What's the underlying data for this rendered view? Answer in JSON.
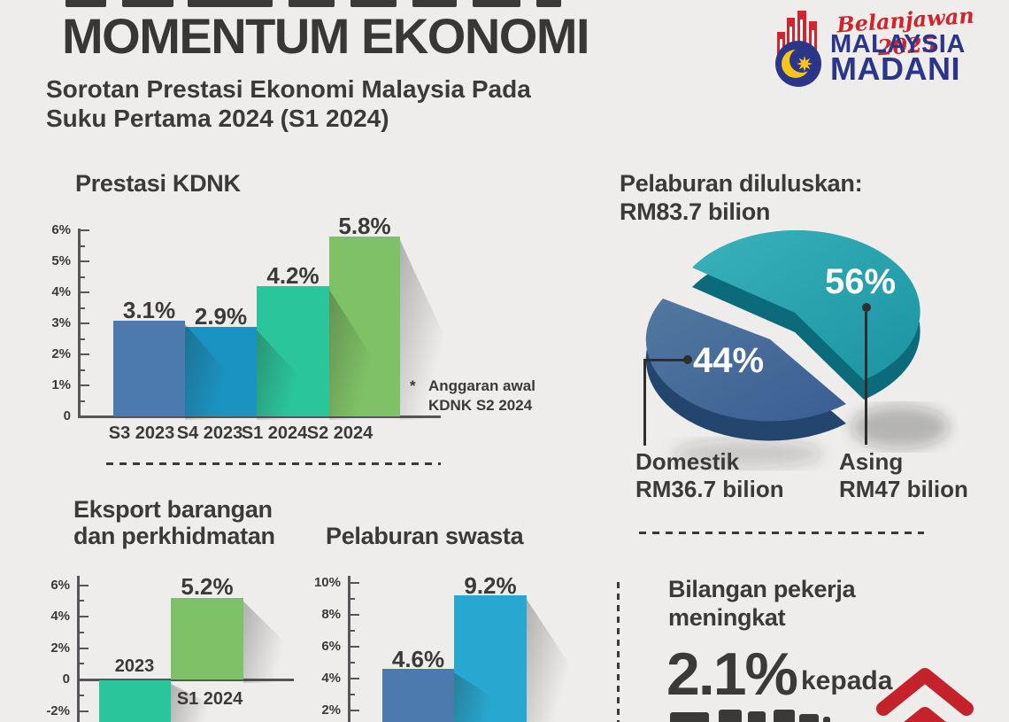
{
  "header": {
    "title": "MOMENTUM EKONOMI",
    "subtitle1": "Sorotan Prestasi Ekonomi Malaysia Pada",
    "subtitle2": "Suku Pertama 2024 (S1 2024)"
  },
  "logo": {
    "script": "Belanjawan 2025",
    "line1": "MALAYSIA",
    "line2": "MADANI",
    "script_color": "#d0242c",
    "navy": "#2b3589",
    "yellow": "#f6c51c",
    "red": "#cf2630"
  },
  "colors": {
    "background": "#eeedec",
    "text": "#3b3a39",
    "axis": "#55565a",
    "accent_red": "#c5232b"
  },
  "chart_data": [
    {
      "type": "bar",
      "title": "Prestasi KDNK",
      "categories": [
        "S3 2023",
        "S4 2023",
        "S1 2024",
        "S2 2024"
      ],
      "values": [
        3.1,
        2.9,
        4.2,
        5.8
      ],
      "value_labels": [
        "3.1%",
        "2.9%",
        "4.2%",
        "5.8%"
      ],
      "unit": "%",
      "ylim": [
        0,
        6
      ],
      "yticks": [
        {
          "v": 6,
          "l": "6%"
        },
        {
          "v": 5,
          "l": "5%"
        },
        {
          "v": 4,
          "l": "4%"
        },
        {
          "v": 3,
          "l": "3%"
        },
        {
          "v": 2,
          "l": "2%"
        },
        {
          "v": 1,
          "l": "1%"
        },
        {
          "v": 0,
          "l": "0"
        }
      ],
      "bar_colors": [
        "#4c79ae",
        "#1b93c2",
        "#2bc59b",
        "#7fc166"
      ],
      "note_star": "*",
      "note_line1": "Anggaran awal",
      "note_line2": "KDNK S2 2024"
    },
    {
      "type": "pie",
      "title": "Pelaburan diluluskan: RM83.7 bilion",
      "title_line1": "Pelaburan diluluskan:",
      "title_line2": "RM83.7 bilion",
      "slices": [
        {
          "label": "Asing",
          "pct": 56,
          "pct_label": "56%",
          "amount": "RM47 bilion",
          "color": "#1f9fae"
        },
        {
          "label": "Domestik",
          "pct": 44,
          "pct_label": "44%",
          "amount": "RM36.7 bilion",
          "color": "#41689f"
        }
      ]
    },
    {
      "type": "bar",
      "title": "Eksport barangan dan perkhidmatan",
      "title_line1": "Eksport barangan",
      "title_line2": "dan perkhidmatan",
      "categories": [
        "2023",
        "S1 2024"
      ],
      "values": [
        null,
        5.2
      ],
      "value_labels": [
        null,
        "5.2%"
      ],
      "unit": "%",
      "ylim_visible": [
        -2,
        6
      ],
      "yticks": [
        {
          "v": 6,
          "l": "6%"
        },
        {
          "v": 4,
          "l": "4%"
        },
        {
          "v": 2,
          "l": "2%"
        },
        {
          "v": 0,
          "l": "0"
        },
        {
          "v": -2,
          "l": "-2%"
        }
      ],
      "bar_colors": [
        "#2bc59b",
        "#7fc166"
      ],
      "note": "2023 bar is negative and extends below the visible image edge"
    },
    {
      "type": "bar",
      "title": "Pelaburan swasta",
      "categories": [
        "",
        ""
      ],
      "values": [
        4.6,
        9.2
      ],
      "value_labels": [
        "4.6%",
        "9.2%"
      ],
      "unit": "%",
      "ylim_visible": [
        2,
        10
      ],
      "yticks": [
        {
          "v": 10,
          "l": "10%"
        },
        {
          "v": 8,
          "l": "8%"
        },
        {
          "v": 6,
          "l": "6%"
        },
        {
          "v": 4,
          "l": "4%"
        },
        {
          "v": 2,
          "l": "2%"
        }
      ],
      "bar_colors": [
        "#4c79ae",
        "#28a8d0"
      ]
    }
  ],
  "stat": {
    "line1": "Bilangan pekerja",
    "line2": "meningkat",
    "value": "2.1%",
    "suffix": "kepada"
  }
}
